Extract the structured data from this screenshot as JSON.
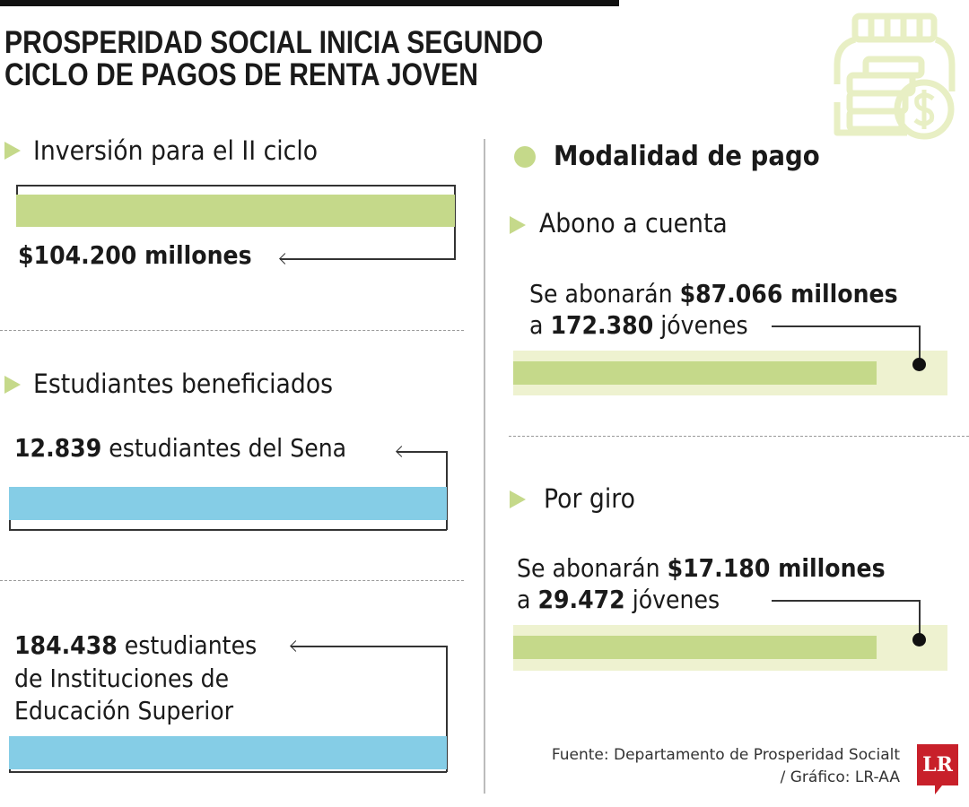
{
  "title": {
    "line1": "PROSPERIDAD SOCIAL INICIA SEGUNDO",
    "line2": "CICLO DE PAGOS DE RENTA JOVEN"
  },
  "colors": {
    "green": "#c5d98a",
    "light_green": "#eef2d0",
    "blue": "#85cde6",
    "logo_red": "#c8202a"
  },
  "icons": {
    "header": "money-jar-icon"
  },
  "left": {
    "investment": {
      "heading": "Inversión para el II ciclo",
      "value": "$104.200 millones"
    },
    "students": {
      "heading": "Estudiantes beneficiados",
      "sena": {
        "number": "12.839",
        "text": " estudiantes del Sena"
      },
      "ies": {
        "number": "184.438",
        "text": " estudiantes",
        "line2": "de Instituciones de",
        "line3": "Educación Superior"
      }
    }
  },
  "right": {
    "heading": "Modalidad de pago",
    "abono": {
      "heading": "Abono a cuenta",
      "prefix": "Se abonarán ",
      "amount": "$87.066 millones",
      "line2_prefix": "a ",
      "count": "172.380",
      "line2_suffix": " jóvenes"
    },
    "giro": {
      "heading": "Por giro",
      "prefix": "Se abonarán ",
      "amount": "$17.180 millones",
      "line2_prefix": "a ",
      "count": "29.472",
      "line2_suffix": " jóvenes"
    }
  },
  "source": {
    "line1": "Fuente: Departamento de Prosperidad Socialt",
    "line2": "/ Gráfico: LR-AA"
  },
  "logo": {
    "text": "LR"
  }
}
